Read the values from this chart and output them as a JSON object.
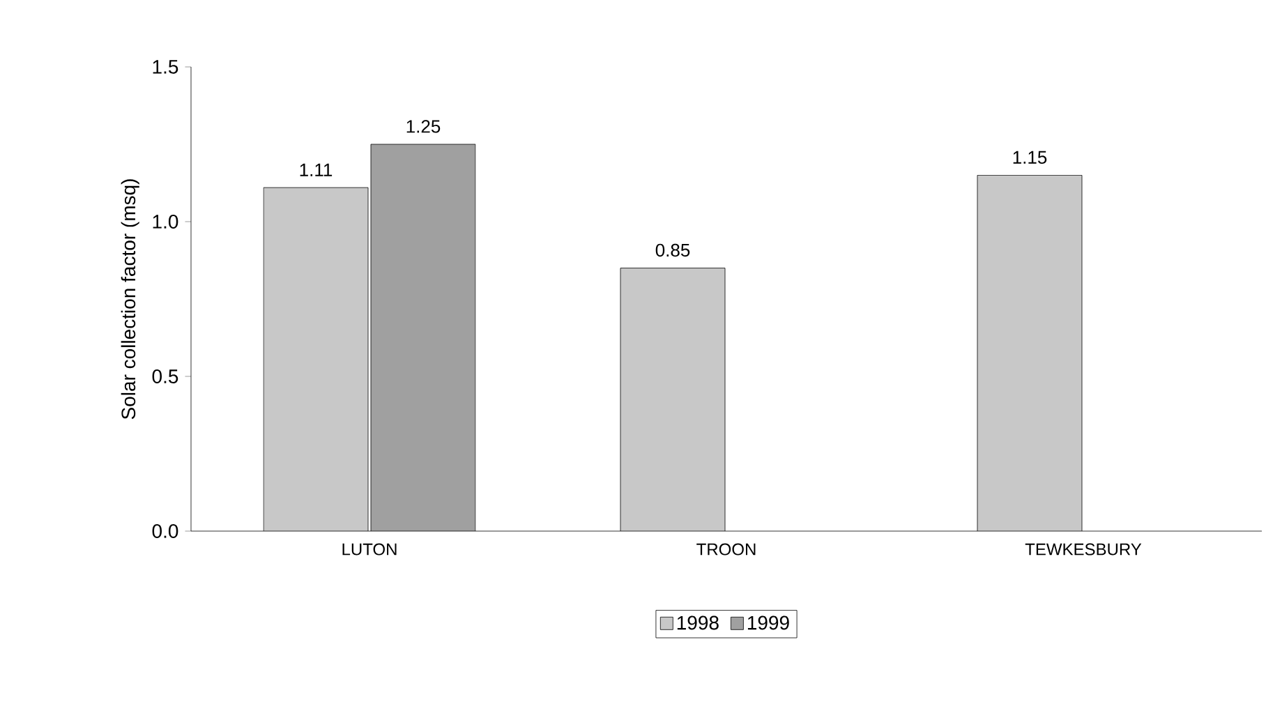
{
  "chart_data": {
    "type": "bar",
    "ylabel": "Solar collection factor (msq)",
    "categories": [
      "LUTON",
      "TROON",
      "TEWKESBURY"
    ],
    "series": [
      {
        "name": "1998",
        "color": "#c8c8c8",
        "values": [
          1.11,
          0.85,
          1.15
        ]
      },
      {
        "name": "1999",
        "color": "#a0a0a0",
        "values": [
          1.25,
          null,
          null
        ]
      }
    ],
    "ylim": [
      0,
      1.5
    ],
    "yticks": [
      {
        "value": 0,
        "label": "0.0"
      },
      {
        "value": 0.5,
        "label": "0.5"
      },
      {
        "value": 1,
        "label": "1.0"
      },
      {
        "value": 1.5,
        "label": "1.5"
      }
    ],
    "data_labels": true,
    "legend": "bottom",
    "grid": false
  }
}
